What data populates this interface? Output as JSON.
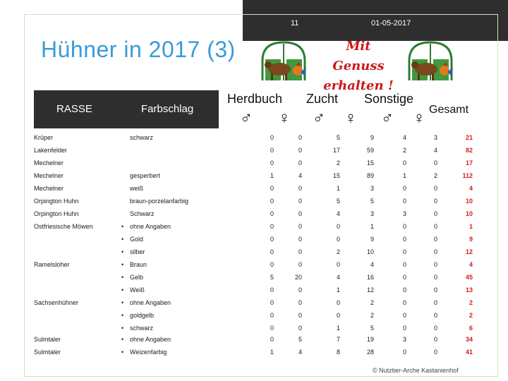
{
  "header": {
    "slide_number": "11",
    "date": "01-05-2017"
  },
  "title": "Hühner in 2017 (3)",
  "banner": {
    "line1": "Mit Genuss",
    "line2": "erhalten !"
  },
  "table": {
    "headers": {
      "rasse": "RASSE",
      "farbschlag": "Farbschlag",
      "herdbuch": "Herdbuch",
      "zucht": "Zucht",
      "sonstige": "Sonstige",
      "gesamt": "Gesamt",
      "male": "♂",
      "female": "♀"
    },
    "rows": [
      {
        "rasse": "Krüper",
        "bullet": "",
        "farbschlag": "schwarz",
        "v": [
          "0",
          "0",
          "5",
          "9",
          "4",
          "3"
        ],
        "total": "21"
      },
      {
        "rasse": "Lakenfelder",
        "bullet": "",
        "farbschlag": "",
        "v": [
          "0",
          "0",
          "17",
          "59",
          "2",
          "4"
        ],
        "total": "82"
      },
      {
        "rasse": "Mechelner",
        "bullet": "",
        "farbschlag": "",
        "v": [
          "0",
          "0",
          "2",
          "15",
          "0",
          "0"
        ],
        "total": "17"
      },
      {
        "rasse": "Mechelner",
        "bullet": "",
        "farbschlag": "gesperbert",
        "v": [
          "1",
          "4",
          "15",
          "89",
          "1",
          "2"
        ],
        "total": "112"
      },
      {
        "rasse": "Mechelner",
        "bullet": "",
        "farbschlag": "weiß",
        "v": [
          "0",
          "0",
          "1",
          "3",
          "0",
          "0"
        ],
        "total": "4"
      },
      {
        "rasse": "Orpington Huhn",
        "bullet": "",
        "farbschlag": "braun-porzelanfarbig",
        "v": [
          "0",
          "0",
          "5",
          "5",
          "0",
          "0"
        ],
        "total": "10"
      },
      {
        "rasse": "Orpington Huhn",
        "bullet": "",
        "farbschlag": "Schwarz",
        "v": [
          "0",
          "0",
          "4",
          "3",
          "3",
          "0"
        ],
        "total": "10"
      },
      {
        "rasse": "Ostfriesische Möwen",
        "bullet": "•",
        "farbschlag": "ohne Angaben",
        "v": [
          "0",
          "0",
          "0",
          "1",
          "0",
          "0"
        ],
        "total": "1"
      },
      {
        "rasse": "",
        "bullet": "•",
        "farbschlag": "Gold",
        "v": [
          "0",
          "0",
          "0",
          "9",
          "0",
          "0"
        ],
        "total": "9"
      },
      {
        "rasse": "",
        "bullet": "•",
        "farbschlag": "silber",
        "v": [
          "0",
          "0",
          "2",
          "10",
          "0",
          "0"
        ],
        "total": "12"
      },
      {
        "rasse": "Ramelsloher",
        "bullet": "•",
        "farbschlag": "Braun",
        "v": [
          "0",
          "0",
          "0",
          "4",
          "0",
          "0"
        ],
        "total": "4"
      },
      {
        "rasse": "",
        "bullet": "•",
        "farbschlag": "Gelb",
        "v": [
          "5",
          "20",
          "4",
          "16",
          "0",
          "0"
        ],
        "total": "45"
      },
      {
        "rasse": "",
        "bullet": "•",
        "farbschlag": "Weiß",
        "v": [
          "0",
          "0",
          "1",
          "12",
          "0",
          "0"
        ],
        "total": "13"
      },
      {
        "rasse": "Sachsenhühner",
        "bullet": "•",
        "farbschlag": "ohne Angaben",
        "v": [
          "0",
          "0",
          "0",
          "2",
          "0",
          "0"
        ],
        "total": "2"
      },
      {
        "rasse": "",
        "bullet": "•",
        "farbschlag": "goldgelb",
        "v": [
          "0",
          "0",
          "0",
          "2",
          "0",
          "0"
        ],
        "total": "2"
      },
      {
        "rasse": "",
        "bullet": "•",
        "farbschlag": "schwarz",
        "v": [
          "0",
          "0",
          "1",
          "5",
          "0",
          "0"
        ],
        "total": "6"
      },
      {
        "rasse": "Sulmtaler",
        "bullet": "•",
        "farbschlag": "ohne Angaben",
        "v": [
          "0",
          "5",
          "7",
          "19",
          "3",
          "0"
        ],
        "total": "34"
      },
      {
        "rasse": "Sulmtaler",
        "bullet": "•",
        "farbschlag": "Weizenfarbig",
        "v": [
          "1",
          "4",
          "8",
          "28",
          "0",
          "0"
        ],
        "total": "41"
      }
    ]
  },
  "copyright": "© Nutztier-Arche Kastanienhof",
  "colors": {
    "title": "#3a9ad9",
    "total": "#d61a1a",
    "banner": "#cc1818",
    "header_bg": "#2e2e2e"
  },
  "icons": {
    "logo": "farm-gate-cow-rooster-icon"
  }
}
